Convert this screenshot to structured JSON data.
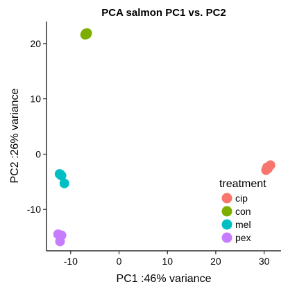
{
  "chart_data": {
    "type": "scatter",
    "title": "PCA salmon PC1 vs. PC2",
    "xlabel": "PC1 :46% variance",
    "ylabel": "PC2 :26% variance",
    "xlim": [
      -15,
      33.5
    ],
    "ylim": [
      -17.5,
      24
    ],
    "xticks": [
      -10,
      0,
      10,
      20,
      30
    ],
    "yticks": [
      -10,
      0,
      10,
      20
    ],
    "grid": false,
    "legend": {
      "title": "treatment",
      "position": "right-inside-bottom"
    },
    "series": [
      {
        "name": "cip",
        "color": "#F8766D",
        "points": [
          [
            30.6,
            -2.4
          ],
          [
            31.3,
            -2.0
          ],
          [
            30.4,
            -2.9
          ],
          [
            30.8,
            -2.6
          ]
        ]
      },
      {
        "name": "con",
        "color": "#7CAE00",
        "points": [
          [
            -7.0,
            21.6
          ],
          [
            -6.6,
            21.9
          ],
          [
            -6.9,
            21.8
          ],
          [
            -6.7,
            21.7
          ]
        ]
      },
      {
        "name": "mel",
        "color": "#00BFC4",
        "points": [
          [
            -12.3,
            -3.6
          ],
          [
            -11.9,
            -3.9
          ],
          [
            -11.3,
            -5.3
          ],
          [
            -12.1,
            -3.7
          ]
        ]
      },
      {
        "name": "pex",
        "color": "#C77CFF",
        "points": [
          [
            -12.6,
            -14.5
          ],
          [
            -11.9,
            -14.7
          ],
          [
            -12.2,
            -15.8
          ],
          [
            -12.4,
            -14.6
          ]
        ]
      }
    ]
  }
}
